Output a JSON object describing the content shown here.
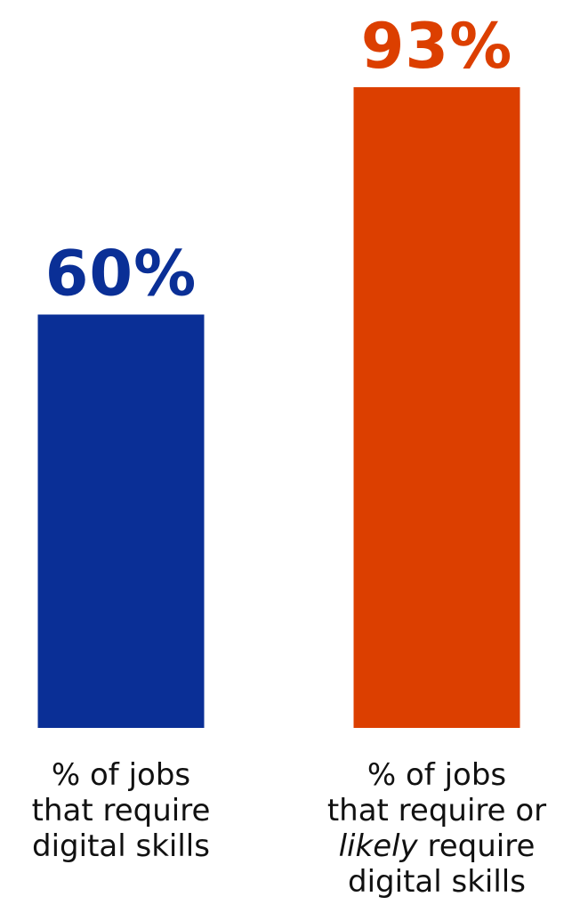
{
  "chart_data": {
    "type": "bar",
    "categories": [
      "% of jobs that require digital skills",
      "% of jobs that require or likely require digital skills"
    ],
    "values": [
      60,
      93
    ],
    "value_labels": [
      "60%",
      "93%"
    ],
    "category_label_lines": [
      [
        "% of jobs",
        "that require",
        "digital skills"
      ],
      [
        "% of jobs",
        "that require or",
        "likely require",
        "digital skills"
      ]
    ],
    "italic_words": [
      [],
      [
        "likely"
      ]
    ],
    "colors": [
      "#0a2f96",
      "#dc3f00"
    ],
    "ylim": [
      0,
      100
    ],
    "grid": false,
    "legend": "none",
    "title": "",
    "xlabel": "",
    "ylabel": ""
  }
}
